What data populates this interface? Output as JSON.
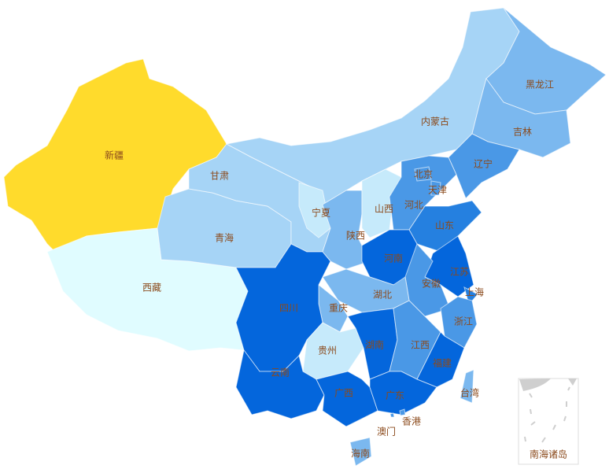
{
  "map": {
    "colors": {
      "level1": "#e0fcff",
      "level2": "#c6eafb",
      "level3": "#a6d4f6",
      "level4": "#7bb8ef",
      "level5": "#4a98e6",
      "level6": "#2580e0",
      "level7": "#0466dc",
      "highlight": "#ffdb2c",
      "label": "#8b4a1c"
    },
    "provinces": [
      {
        "id": "xinjiang",
        "name": "新疆",
        "level": "highlight"
      },
      {
        "id": "xizang",
        "name": "西藏",
        "level": "level1"
      },
      {
        "id": "qinghai",
        "name": "青海",
        "level": "level3"
      },
      {
        "id": "gansu",
        "name": "甘肃",
        "level": "level3"
      },
      {
        "id": "neimenggu",
        "name": "内蒙古",
        "level": "level3"
      },
      {
        "id": "heilongjiang",
        "name": "黑龙江",
        "level": "level4"
      },
      {
        "id": "jilin",
        "name": "吉林",
        "level": "level4"
      },
      {
        "id": "liaoning",
        "name": "辽宁",
        "level": "level5"
      },
      {
        "id": "ningxia",
        "name": "宁夏",
        "level": "level2"
      },
      {
        "id": "shaanxi",
        "name": "陕西",
        "level": "level4"
      },
      {
        "id": "shanxi",
        "name": "山西",
        "level": "level2"
      },
      {
        "id": "hebei",
        "name": "河北",
        "level": "level5"
      },
      {
        "id": "beijing",
        "name": "北京",
        "level": "level5"
      },
      {
        "id": "tianjin",
        "name": "天津",
        "level": "level5"
      },
      {
        "id": "shandong",
        "name": "山东",
        "level": "level6"
      },
      {
        "id": "henan",
        "name": "河南",
        "level": "level7"
      },
      {
        "id": "jiangsu",
        "name": "江苏",
        "level": "level7"
      },
      {
        "id": "anhui",
        "name": "安徽",
        "level": "level5"
      },
      {
        "id": "shanghai",
        "name": "上海",
        "level": "level6"
      },
      {
        "id": "zhejiang",
        "name": "浙江",
        "level": "level5"
      },
      {
        "id": "hubei",
        "name": "湖北",
        "level": "level4"
      },
      {
        "id": "chongqing",
        "name": "重庆",
        "level": "level4"
      },
      {
        "id": "sichuan",
        "name": "四川",
        "level": "level7"
      },
      {
        "id": "guizhou",
        "name": "贵州",
        "level": "level2"
      },
      {
        "id": "yunnan",
        "name": "云南",
        "level": "level7"
      },
      {
        "id": "hunan",
        "name": "湖南",
        "level": "level7"
      },
      {
        "id": "jiangxi",
        "name": "江西",
        "level": "level5"
      },
      {
        "id": "fujian",
        "name": "福建",
        "level": "level7"
      },
      {
        "id": "guangxi",
        "name": "广西",
        "level": "level7"
      },
      {
        "id": "guangdong",
        "name": "广东",
        "level": "level7"
      },
      {
        "id": "hainan",
        "name": "海南",
        "level": "level4"
      },
      {
        "id": "taiwan",
        "name": "台湾",
        "level": "level4"
      },
      {
        "id": "xianggang",
        "name": "香港",
        "level": "level5"
      },
      {
        "id": "aomen",
        "name": "澳门",
        "level": "level5"
      }
    ],
    "inset_label": "南海诸岛"
  }
}
